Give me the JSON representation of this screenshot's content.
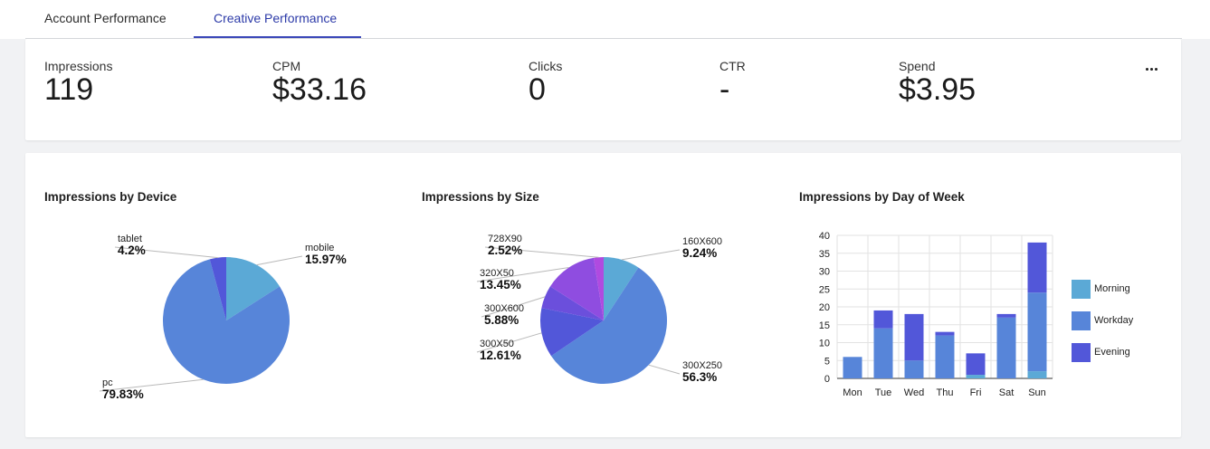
{
  "tabs": [
    {
      "label": "Account Performance",
      "active": false
    },
    {
      "label": "Creative Performance",
      "active": true
    }
  ],
  "kpis": [
    {
      "label": "Impressions",
      "value": "119"
    },
    {
      "label": "CPM",
      "value": "$33.16"
    },
    {
      "label": "Clicks",
      "value": "0"
    },
    {
      "label": "CTR",
      "value": "-"
    },
    {
      "label": "Spend",
      "value": "$3.95"
    }
  ],
  "more_menu": {
    "icon": "more-horizontal-icon"
  },
  "colors": {
    "morning": "#5ba9d6",
    "workday": "#5785d9",
    "evening": "#5257d9",
    "violet": "#8f4de0",
    "magenta": "#b04ae0",
    "active_tab": "#2c3aa8"
  },
  "chart_data": [
    {
      "type": "pie",
      "title": "Impressions by Device",
      "slices": [
        {
          "label": "mobile",
          "percent": 15.97,
          "pct_label": "15.97%",
          "color": "#5ba9d6"
        },
        {
          "label": "pc",
          "percent": 79.83,
          "pct_label": "79.83%",
          "color": "#5785d9"
        },
        {
          "label": "tablet",
          "percent": 4.2,
          "pct_label": "4.2%",
          "color": "#5257d9"
        }
      ]
    },
    {
      "type": "pie",
      "title": "Impressions by Size",
      "slices": [
        {
          "label": "160X600",
          "percent": 9.24,
          "pct_label": "9.24%",
          "color": "#5ba9d6"
        },
        {
          "label": "300X250",
          "percent": 56.3,
          "pct_label": "56.3%",
          "color": "#5785d9"
        },
        {
          "label": "300X50",
          "percent": 12.61,
          "pct_label": "12.61%",
          "color": "#5257d9"
        },
        {
          "label": "300X600",
          "percent": 5.88,
          "pct_label": "5.88%",
          "color": "#6b4fdc"
        },
        {
          "label": "320X50",
          "percent": 13.45,
          "pct_label": "13.45%",
          "color": "#8f4de0"
        },
        {
          "label": "728X90",
          "percent": 2.52,
          "pct_label": "2.52%",
          "color": "#b04ae0"
        }
      ]
    },
    {
      "type": "bar",
      "stacked": true,
      "title": "Impressions by Day of Week",
      "categories": [
        "Mon",
        "Tue",
        "Wed",
        "Thu",
        "Fri",
        "Sat",
        "Sun"
      ],
      "series": [
        {
          "name": "Morning",
          "color": "#5ba9d6",
          "values": [
            0,
            0,
            0,
            0,
            1,
            0,
            2
          ]
        },
        {
          "name": "Workday",
          "color": "#5785d9",
          "values": [
            6,
            14,
            5,
            12,
            0,
            17,
            22
          ]
        },
        {
          "name": "Evening",
          "color": "#5257d9",
          "values": [
            0,
            5,
            13,
            1,
            6,
            1,
            14
          ]
        }
      ],
      "ylim": [
        0,
        40
      ],
      "yticks": [
        "0",
        "5",
        "10",
        "15",
        "20",
        "25",
        "30",
        "35",
        "40"
      ],
      "grid": true,
      "legend": "right"
    }
  ]
}
